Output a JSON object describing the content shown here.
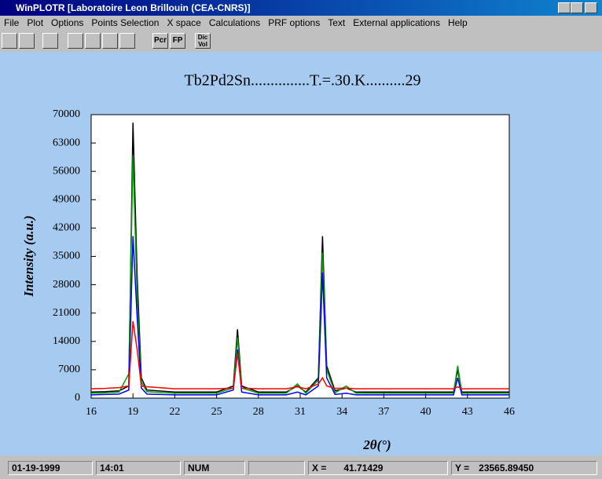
{
  "window": {
    "title": "WinPLOTR [Laboratoire Leon Brillouin (CEA-CNRS)]"
  },
  "menu": [
    "File",
    "Plot",
    "Options",
    "Points Selection",
    "X space",
    "Calculations",
    "PRF options",
    "Text",
    "External applications",
    "Help"
  ],
  "toolbar": {
    "pcr": "Pcr",
    "fp": "FP",
    "dic": "Dic",
    "vol": "Vol"
  },
  "chart_data": {
    "type": "line",
    "title": "Tb2Pd2Sn...............T.=.30.K..........29",
    "x_label": "2θ(°)",
    "y_label": "Intensity (a.u.)",
    "x": [
      16,
      17,
      18,
      18.7,
      19,
      19.3,
      19.6,
      20,
      22,
      25,
      26.2,
      26.5,
      26.8,
      28,
      30,
      30.8,
      31.4,
      32.3,
      32.6,
      32.9,
      33.5,
      34.3,
      35,
      37,
      40,
      42,
      42.3,
      42.6,
      44,
      46
    ],
    "series": [
      {
        "color": "#000000",
        "values": [
          1500,
          1600,
          1800,
          3000,
          68000,
          30000,
          5000,
          2000,
          1500,
          1500,
          3000,
          17000,
          3000,
          1500,
          1500,
          3000,
          1500,
          5000,
          40000,
          8000,
          1800,
          2500,
          1500,
          1500,
          1500,
          1500,
          7000,
          1500,
          1500,
          1500
        ]
      },
      {
        "color": "#00a000",
        "values": [
          1200,
          1300,
          1500,
          6000,
          60000,
          25000,
          4000,
          1600,
          1200,
          1200,
          2500,
          15000,
          2500,
          1200,
          1200,
          3500,
          1200,
          4500,
          36000,
          7000,
          1300,
          3000,
          1200,
          1200,
          1200,
          1200,
          8000,
          1200,
          1200,
          1200
        ]
      },
      {
        "color": "#0000ff",
        "values": [
          800,
          900,
          1000,
          2000,
          40000,
          20000,
          2500,
          1000,
          800,
          800,
          2000,
          12000,
          1500,
          800,
          800,
          1500,
          800,
          3000,
          31000,
          5000,
          900,
          1200,
          800,
          800,
          800,
          800,
          5000,
          800,
          800,
          800
        ]
      },
      {
        "color": "#ff0000",
        "values": [
          2300,
          2400,
          2600,
          3000,
          19000,
          12000,
          3000,
          2800,
          2300,
          2300,
          2500,
          11000,
          2500,
          2300,
          2300,
          2800,
          2300,
          3500,
          5000,
          3000,
          2400,
          2500,
          2300,
          2300,
          2300,
          2300,
          2800,
          2300,
          2300,
          2300
        ]
      }
    ],
    "xlim": [
      16,
      46
    ],
    "xticks": [
      16,
      19,
      22,
      25,
      28,
      31,
      34,
      37,
      40,
      43,
      46
    ],
    "ylim": [
      0,
      70000
    ],
    "yticks": [
      0,
      7000,
      14000,
      21000,
      28000,
      35000,
      42000,
      49000,
      56000,
      63000,
      70000
    ]
  },
  "status": {
    "date": "01-19-1999",
    "time": "14:01",
    "num": "NUM",
    "x_label": "X =",
    "x_value": "41.71429",
    "y_label": "Y =",
    "y_value": "23565.89450"
  }
}
